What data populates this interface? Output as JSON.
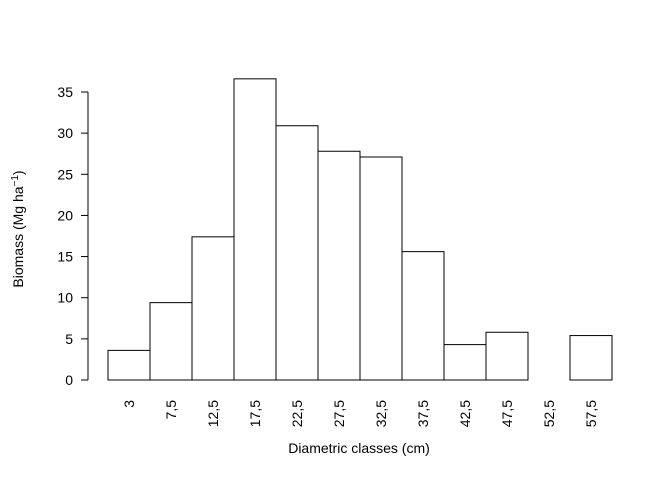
{
  "chart_data": {
    "type": "bar",
    "title": "",
    "xlabel": "Diametric classes (cm)",
    "ylabel": {
      "main": "Biomass (Mg ha",
      "exponent": "−1",
      "close": ")"
    },
    "categories": [
      "3",
      "7,5",
      "12,5",
      "17,5",
      "22,5",
      "27,5",
      "32,5",
      "37,5",
      "42,5",
      "47,5",
      "52,5",
      "57,5"
    ],
    "values": [
      3.6,
      9.4,
      17.4,
      36.6,
      30.9,
      27.8,
      27.1,
      15.6,
      4.3,
      5.8,
      0,
      5.4
    ],
    "ylim": [
      0,
      35
    ],
    "yticks": [
      "0",
      "5",
      "10",
      "15",
      "20",
      "25",
      "30",
      "35"
    ],
    "grid": false,
    "legend": "none"
  }
}
